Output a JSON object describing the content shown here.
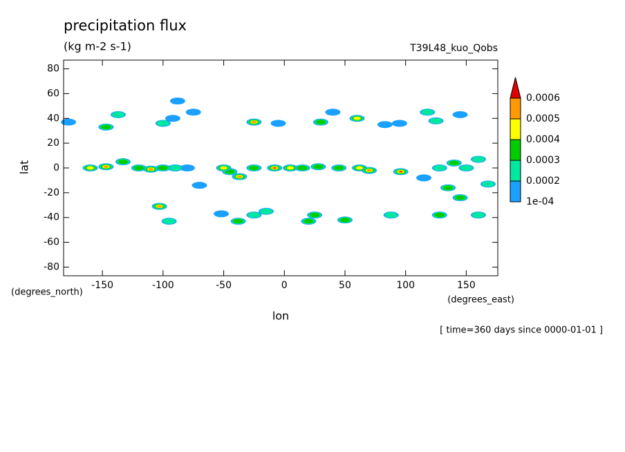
{
  "chart_data": {
    "type": "contour",
    "title": "precipitation flux",
    "subtitle": "(kg m-2 s-1)",
    "dataset": "T39L48_kuo_Qobs",
    "x_label": "lon",
    "y_label": "lat",
    "x_units": "(degrees_east)",
    "y_units": "(degrees_north)",
    "annotation": "[ time=360 days since 0000-01-01 ]",
    "xlim": [
      -182,
      176
    ],
    "ylim": [
      -87,
      87
    ],
    "xticks": [
      -150,
      -100,
      -50,
      0,
      50,
      100,
      150
    ],
    "yticks": [
      -80,
      -60,
      -40,
      -20,
      0,
      20,
      40,
      60,
      80
    ],
    "levels": [
      {
        "value": 0.0001,
        "label": "1e-04"
      },
      0.0002,
      0.0003,
      0.0004,
      0.0005,
      0.0006
    ],
    "colors": [
      "#1aa0ff",
      "#00e8a0",
      "#00cc00",
      "#ffff00",
      "#ff9900",
      "#e00000"
    ],
    "x": [
      -178,
      -160,
      -147,
      -133,
      -120,
      -110,
      -100,
      -90,
      -80,
      -50,
      -45,
      -37,
      -25,
      -8,
      5,
      15,
      28,
      45,
      62,
      70,
      96,
      115,
      128,
      140,
      150,
      160,
      -147,
      -137,
      -100,
      -92,
      -88,
      -75,
      -25,
      -5,
      30,
      40,
      60,
      83,
      95,
      118,
      125,
      145,
      -103,
      -95,
      -70,
      -52,
      -38,
      -25,
      -15,
      20,
      25,
      50,
      88,
      128,
      135,
      145,
      168,
      160
    ],
    "y": [
      37,
      0,
      1,
      5,
      0,
      -1,
      0,
      0,
      0,
      0,
      -3,
      -7,
      0,
      0,
      0,
      0,
      1,
      0,
      0,
      -2,
      -3,
      -8,
      0,
      4,
      0,
      7,
      33,
      43,
      36,
      40,
      54,
      45,
      37,
      36,
      37,
      45,
      40,
      35,
      36,
      45,
      38,
      43,
      -31,
      -43,
      -14,
      -37,
      -43,
      -38,
      -35,
      -43,
      -38,
      -42,
      -38,
      -38,
      -16,
      -24,
      -13,
      -38
    ],
    "values": [
      0.00015,
      0.0004,
      0.0005,
      0.0003,
      0.0003,
      0.0005,
      0.0003,
      0.0002,
      0.00015,
      0.0004,
      0.0003,
      0.0005,
      0.0003,
      0.0006,
      0.0004,
      0.0003,
      0.0003,
      0.0003,
      0.0004,
      0.0005,
      0.0006,
      0.00015,
      0.0002,
      0.0003,
      0.0002,
      0.00025,
      0.0003,
      0.0002,
      0.0002,
      0.00015,
      0.00015,
      0.00015,
      0.0005,
      0.00015,
      0.0003,
      0.00015,
      0.0004,
      0.00015,
      0.00015,
      0.0002,
      0.0002,
      0.00015,
      0.0005,
      0.0002,
      0.00015,
      0.00015,
      0.0003,
      0.0002,
      0.0002,
      0.0003,
      0.0003,
      0.0003,
      0.00025,
      0.0003,
      0.0003,
      0.0003,
      0.0002,
      0.0002
    ]
  }
}
